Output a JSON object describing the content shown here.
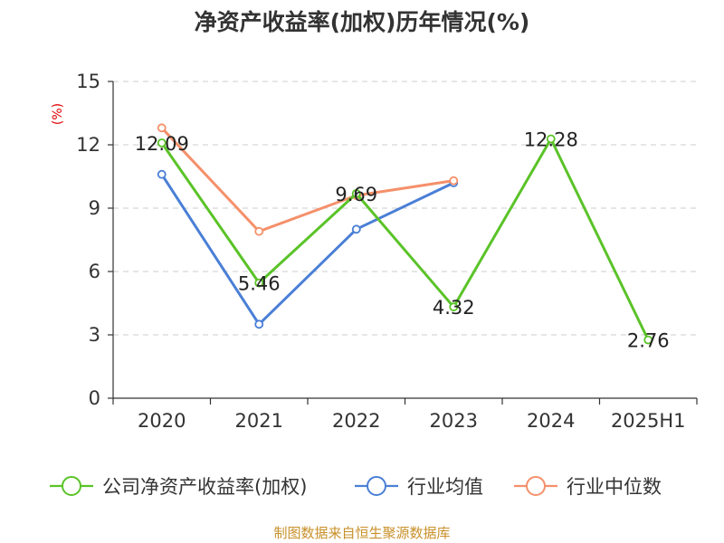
{
  "chart_data": {
    "type": "line",
    "title": "净资产收益率(加权)历年情况(%)",
    "ylabel": "(%)",
    "xlabel": "",
    "categories": [
      "2020",
      "2021",
      "2022",
      "2023",
      "2024",
      "2025H1"
    ],
    "ylim": [
      0,
      15
    ],
    "yticks": [
      0,
      3,
      6,
      9,
      12,
      15
    ],
    "grid": true,
    "legend_position": "bottom",
    "series": [
      {
        "name": "公司净资产收益率(加权)",
        "color": "#5ac328",
        "values": [
          12.09,
          5.46,
          9.69,
          4.32,
          12.28,
          2.76
        ],
        "data_labels": [
          "12.09",
          "5.46",
          "9.69",
          "4.32",
          "12.28",
          "2.76"
        ]
      },
      {
        "name": "行业均值",
        "color": "#4a7fd6",
        "values": [
          10.6,
          3.5,
          8.0,
          10.2,
          null,
          null
        ],
        "data_labels": []
      },
      {
        "name": "行业中位数",
        "color": "#f5906a",
        "values": [
          12.8,
          7.9,
          9.6,
          10.3,
          null,
          null
        ],
        "data_labels": []
      }
    ]
  },
  "source": "制图数据来自恒生聚源数据库"
}
